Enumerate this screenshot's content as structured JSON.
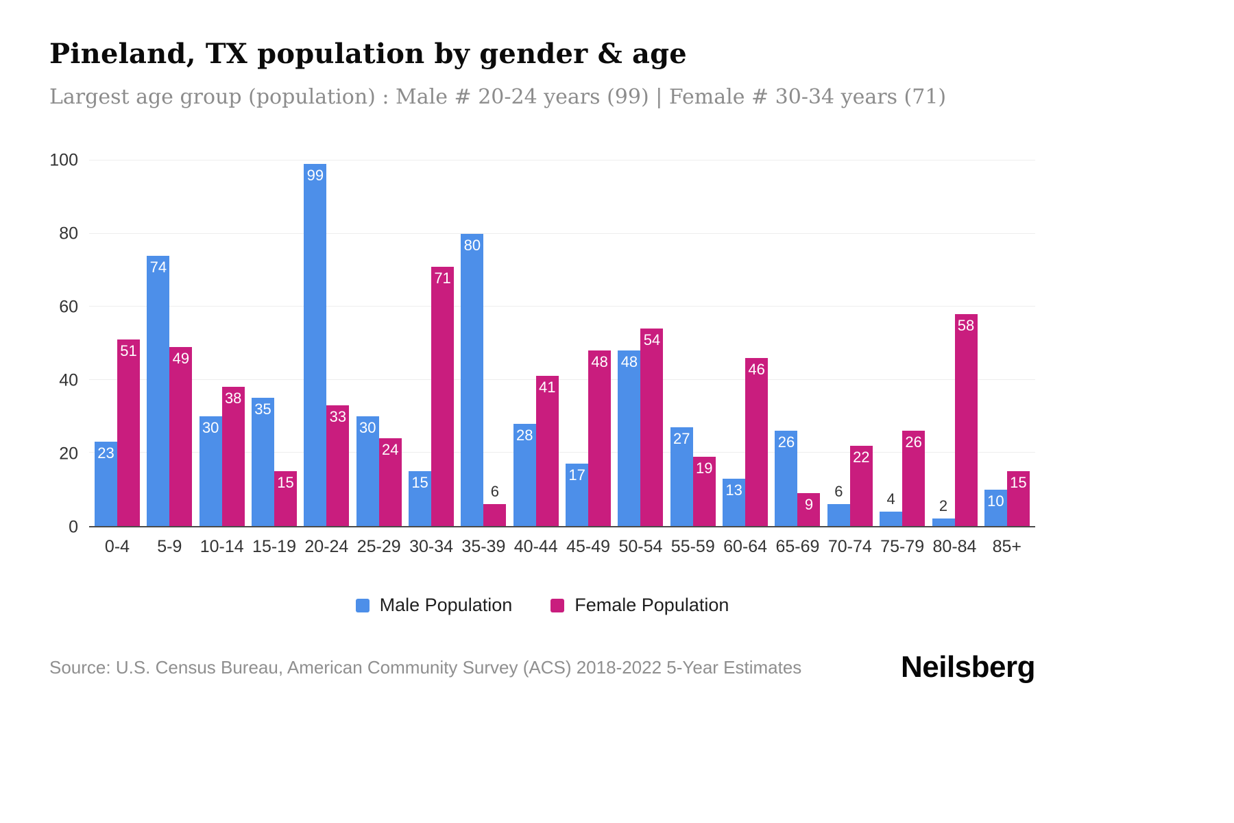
{
  "chart_data": {
    "type": "bar",
    "title": "Pineland, TX population by gender & age",
    "subtitle": "Largest age group (population) : Male # 20-24 years (99) | Female # 30-34 years (71)",
    "categories": [
      "0-4",
      "5-9",
      "10-14",
      "15-19",
      "20-24",
      "25-29",
      "30-34",
      "35-39",
      "40-44",
      "45-49",
      "50-54",
      "55-59",
      "60-64",
      "65-69",
      "70-74",
      "75-79",
      "80-84",
      "85+"
    ],
    "series": [
      {
        "name": "Male Population",
        "color": "#4D8FE9",
        "values": [
          23,
          74,
          30,
          35,
          99,
          30,
          15,
          80,
          28,
          17,
          48,
          27,
          13,
          26,
          6,
          4,
          2,
          10
        ]
      },
      {
        "name": "Female Population",
        "color": "#C91D7E",
        "values": [
          51,
          49,
          38,
          15,
          33,
          24,
          71,
          6,
          41,
          48,
          54,
          19,
          46,
          9,
          22,
          26,
          58,
          15
        ]
      }
    ],
    "xlabel": "",
    "ylabel": "",
    "ylim": [
      0,
      100
    ],
    "yticks": [
      0,
      20,
      40,
      60,
      80,
      100
    ],
    "grid": "horizontal",
    "legend_position": "bottom"
  },
  "footer": {
    "source": "Source: U.S. Census Bureau, American Community Survey (ACS) 2018-2022 5-Year Estimates",
    "brand": "Neilsberg"
  }
}
